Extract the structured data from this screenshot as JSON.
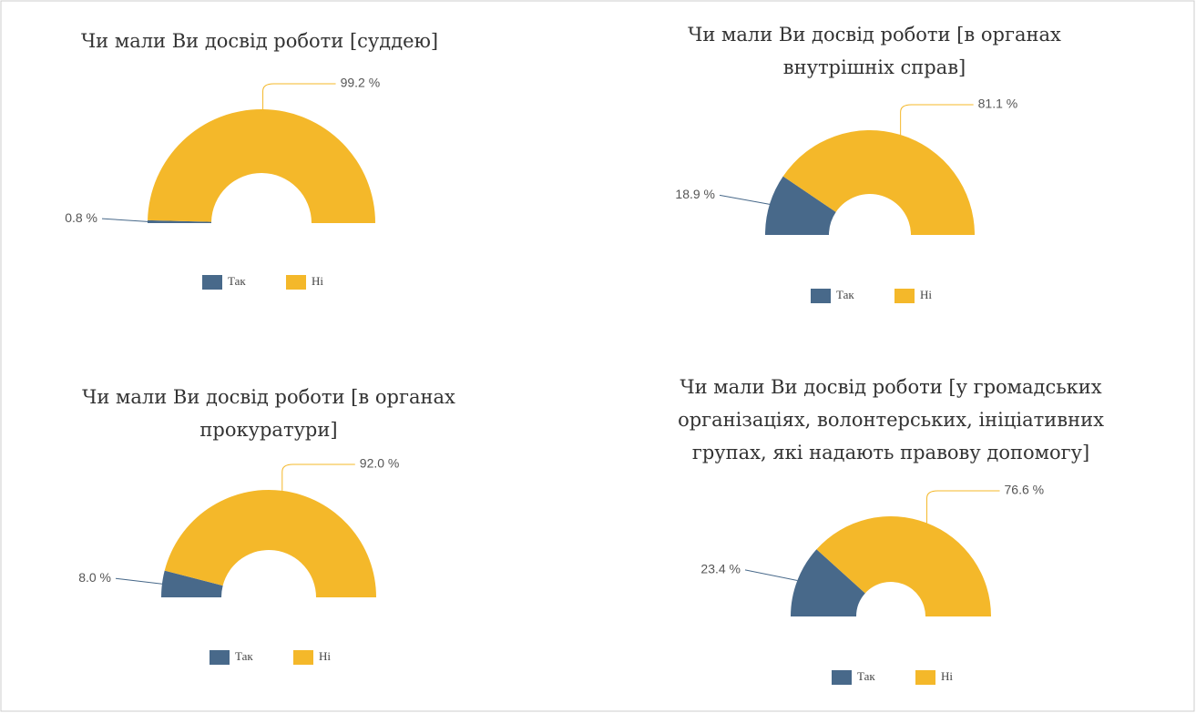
{
  "chart_data": [
    {
      "type": "pie",
      "title": [
        "Чи мали Ви досвід роботи [суддею]"
      ],
      "categories": [
        "Так",
        "Ні"
      ],
      "values": [
        0.8,
        99.2
      ],
      "value_labels": [
        "0.8 %",
        "99.2 %"
      ],
      "colors": [
        "#48698a",
        "#f4b82a"
      ]
    },
    {
      "type": "pie",
      "title": [
        "Чи мали Ви досвід роботи [в органах",
        "внутрішніх справ]"
      ],
      "categories": [
        "Так",
        "Ні"
      ],
      "values": [
        18.9,
        81.1
      ],
      "value_labels": [
        "18.9 %",
        "81.1 %"
      ],
      "colors": [
        "#48698a",
        "#f4b82a"
      ]
    },
    {
      "type": "pie",
      "title": [
        "Чи мали Ви досвід роботи [в органах",
        "прокуратури]"
      ],
      "categories": [
        "Так",
        "Ні"
      ],
      "values": [
        8.0,
        92.0
      ],
      "value_labels": [
        "8.0 %",
        "92.0 %"
      ],
      "colors": [
        "#48698a",
        "#f4b82a"
      ]
    },
    {
      "type": "pie",
      "title": [
        "Чи мали Ви досвід роботи [у громадських",
        "організаціях, волонтерських, ініціативних",
        "групах, які надають правову допомогу]"
      ],
      "categories": [
        "Так",
        "Ні"
      ],
      "values": [
        23.4,
        76.6
      ],
      "value_labels": [
        "23.4 %",
        "76.6 %"
      ],
      "colors": [
        "#48698a",
        "#f4b82a"
      ]
    }
  ]
}
